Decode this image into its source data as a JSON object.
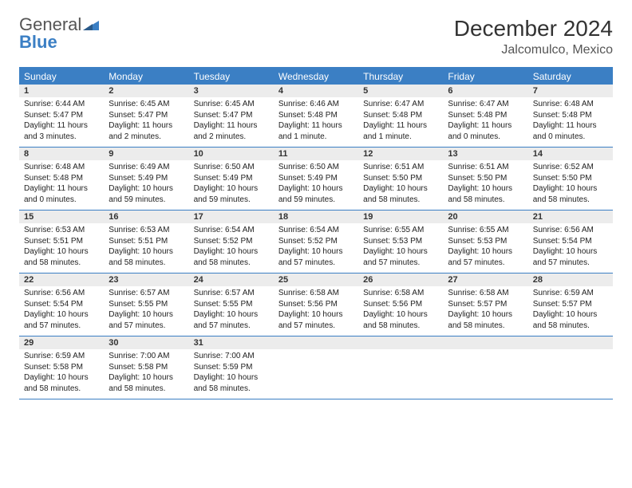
{
  "logo": {
    "line1": "General",
    "line2": "Blue"
  },
  "title": "December 2024",
  "subtitle": "Jalcomulco, Mexico",
  "colors": {
    "accent": "#3b7fc4",
    "daynum_bg": "#ececec",
    "text": "#333333",
    "body_text": "#222222"
  },
  "weekdays": [
    "Sunday",
    "Monday",
    "Tuesday",
    "Wednesday",
    "Thursday",
    "Friday",
    "Saturday"
  ],
  "days": [
    {
      "n": "1",
      "sunrise": "6:44 AM",
      "sunset": "5:47 PM",
      "daylight": "11 hours and 3 minutes."
    },
    {
      "n": "2",
      "sunrise": "6:45 AM",
      "sunset": "5:47 PM",
      "daylight": "11 hours and 2 minutes."
    },
    {
      "n": "3",
      "sunrise": "6:45 AM",
      "sunset": "5:47 PM",
      "daylight": "11 hours and 2 minutes."
    },
    {
      "n": "4",
      "sunrise": "6:46 AM",
      "sunset": "5:48 PM",
      "daylight": "11 hours and 1 minute."
    },
    {
      "n": "5",
      "sunrise": "6:47 AM",
      "sunset": "5:48 PM",
      "daylight": "11 hours and 1 minute."
    },
    {
      "n": "6",
      "sunrise": "6:47 AM",
      "sunset": "5:48 PM",
      "daylight": "11 hours and 0 minutes."
    },
    {
      "n": "7",
      "sunrise": "6:48 AM",
      "sunset": "5:48 PM",
      "daylight": "11 hours and 0 minutes."
    },
    {
      "n": "8",
      "sunrise": "6:48 AM",
      "sunset": "5:48 PM",
      "daylight": "11 hours and 0 minutes."
    },
    {
      "n": "9",
      "sunrise": "6:49 AM",
      "sunset": "5:49 PM",
      "daylight": "10 hours and 59 minutes."
    },
    {
      "n": "10",
      "sunrise": "6:50 AM",
      "sunset": "5:49 PM",
      "daylight": "10 hours and 59 minutes."
    },
    {
      "n": "11",
      "sunrise": "6:50 AM",
      "sunset": "5:49 PM",
      "daylight": "10 hours and 59 minutes."
    },
    {
      "n": "12",
      "sunrise": "6:51 AM",
      "sunset": "5:50 PM",
      "daylight": "10 hours and 58 minutes."
    },
    {
      "n": "13",
      "sunrise": "6:51 AM",
      "sunset": "5:50 PM",
      "daylight": "10 hours and 58 minutes."
    },
    {
      "n": "14",
      "sunrise": "6:52 AM",
      "sunset": "5:50 PM",
      "daylight": "10 hours and 58 minutes."
    },
    {
      "n": "15",
      "sunrise": "6:53 AM",
      "sunset": "5:51 PM",
      "daylight": "10 hours and 58 minutes."
    },
    {
      "n": "16",
      "sunrise": "6:53 AM",
      "sunset": "5:51 PM",
      "daylight": "10 hours and 58 minutes."
    },
    {
      "n": "17",
      "sunrise": "6:54 AM",
      "sunset": "5:52 PM",
      "daylight": "10 hours and 58 minutes."
    },
    {
      "n": "18",
      "sunrise": "6:54 AM",
      "sunset": "5:52 PM",
      "daylight": "10 hours and 57 minutes."
    },
    {
      "n": "19",
      "sunrise": "6:55 AM",
      "sunset": "5:53 PM",
      "daylight": "10 hours and 57 minutes."
    },
    {
      "n": "20",
      "sunrise": "6:55 AM",
      "sunset": "5:53 PM",
      "daylight": "10 hours and 57 minutes."
    },
    {
      "n": "21",
      "sunrise": "6:56 AM",
      "sunset": "5:54 PM",
      "daylight": "10 hours and 57 minutes."
    },
    {
      "n": "22",
      "sunrise": "6:56 AM",
      "sunset": "5:54 PM",
      "daylight": "10 hours and 57 minutes."
    },
    {
      "n": "23",
      "sunrise": "6:57 AM",
      "sunset": "5:55 PM",
      "daylight": "10 hours and 57 minutes."
    },
    {
      "n": "24",
      "sunrise": "6:57 AM",
      "sunset": "5:55 PM",
      "daylight": "10 hours and 57 minutes."
    },
    {
      "n": "25",
      "sunrise": "6:58 AM",
      "sunset": "5:56 PM",
      "daylight": "10 hours and 57 minutes."
    },
    {
      "n": "26",
      "sunrise": "6:58 AM",
      "sunset": "5:56 PM",
      "daylight": "10 hours and 58 minutes."
    },
    {
      "n": "27",
      "sunrise": "6:58 AM",
      "sunset": "5:57 PM",
      "daylight": "10 hours and 58 minutes."
    },
    {
      "n": "28",
      "sunrise": "6:59 AM",
      "sunset": "5:57 PM",
      "daylight": "10 hours and 58 minutes."
    },
    {
      "n": "29",
      "sunrise": "6:59 AM",
      "sunset": "5:58 PM",
      "daylight": "10 hours and 58 minutes."
    },
    {
      "n": "30",
      "sunrise": "7:00 AM",
      "sunset": "5:58 PM",
      "daylight": "10 hours and 58 minutes."
    },
    {
      "n": "31",
      "sunrise": "7:00 AM",
      "sunset": "5:59 PM",
      "daylight": "10 hours and 58 minutes."
    }
  ],
  "labels": {
    "sunrise_prefix": "Sunrise: ",
    "sunset_prefix": "Sunset: ",
    "daylight_prefix": "Daylight: "
  }
}
